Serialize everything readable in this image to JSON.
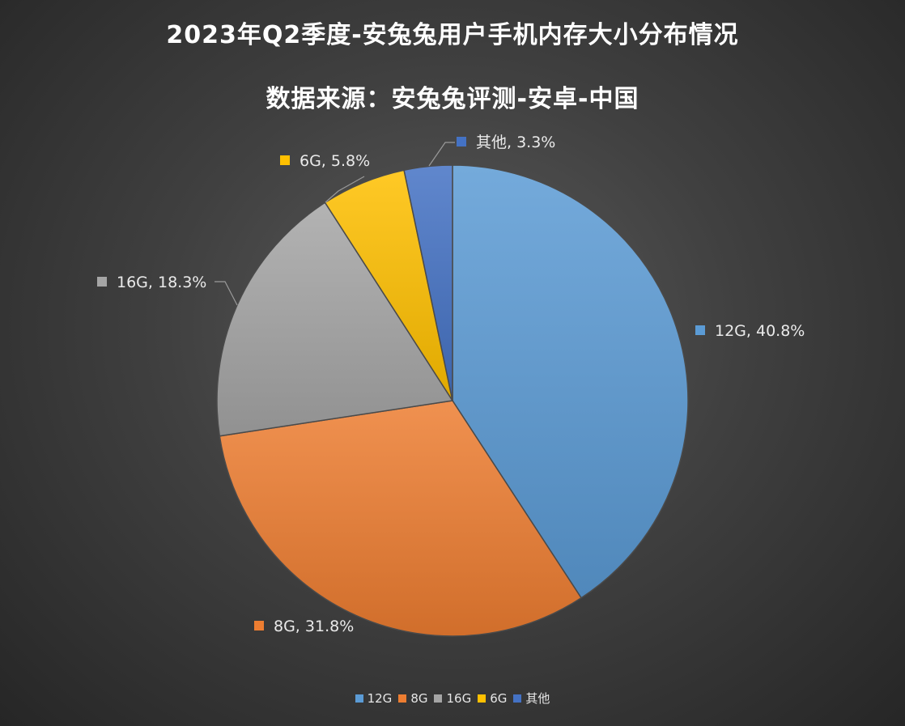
{
  "chart_data": {
    "type": "pie",
    "title": "2023年Q2季度-安兔兔用户手机内存大小分布情况",
    "subtitle": "数据来源：安兔兔评测-安卓-中国",
    "legend_position": "bottom",
    "slices": [
      {
        "label": "12G",
        "value": 40.8,
        "value_label": "12G, 40.8%",
        "color": "#5b9bd5"
      },
      {
        "label": "8G",
        "value": 31.8,
        "value_label": "8G, 31.8%",
        "color": "#ed7d31"
      },
      {
        "label": "16G",
        "value": 18.3,
        "value_label": "16G, 18.3%",
        "color": "#a5a5a5"
      },
      {
        "label": "6G",
        "value": 5.8,
        "value_label": "6G, 5.8%",
        "color": "#ffc000"
      },
      {
        "label": "其他",
        "value": 3.3,
        "value_label": "其他, 3.3%",
        "color": "#4472c4"
      }
    ]
  }
}
